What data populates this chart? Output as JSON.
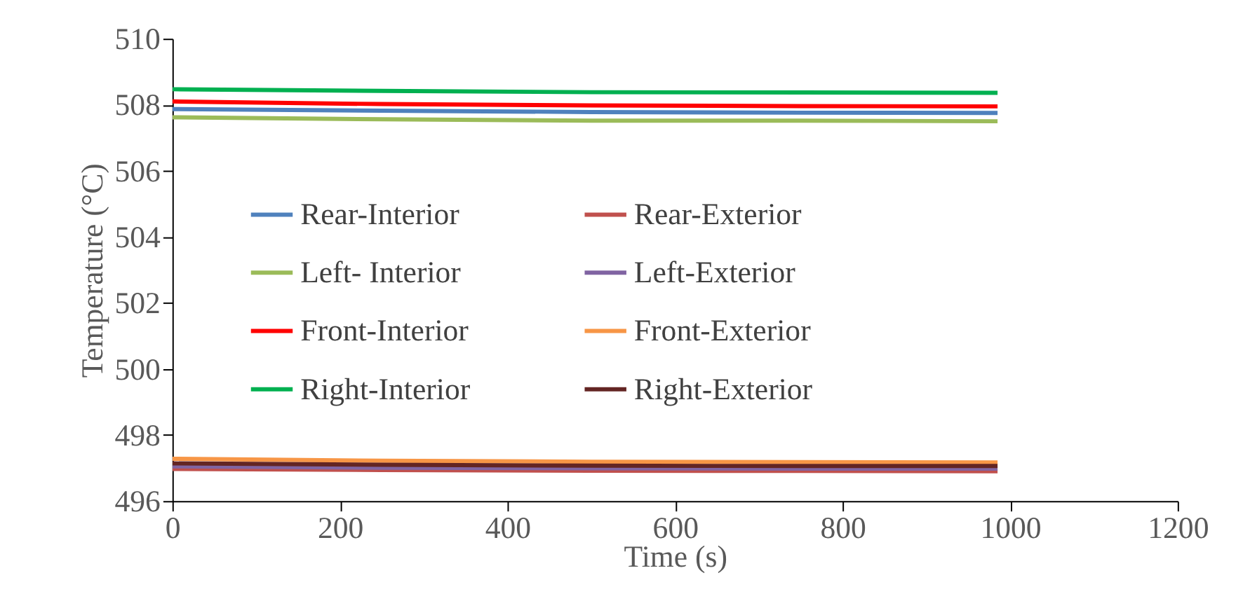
{
  "chart_data": {
    "type": "line",
    "xlabel": "Time (s)",
    "ylabel": "Temperature (°C)",
    "x": [
      0,
      250,
      500,
      750,
      985
    ],
    "series": [
      {
        "name": "Rear-Interior",
        "color": "#4f81bd",
        "values": [
          507.87,
          507.82,
          507.78,
          507.76,
          507.75
        ]
      },
      {
        "name": "Rear-Exterior",
        "color": "#c0504d",
        "values": [
          496.97,
          496.94,
          496.92,
          496.91,
          496.9
        ]
      },
      {
        "name": "Left- Interior",
        "color": "#9bbb59",
        "values": [
          507.62,
          507.56,
          507.52,
          507.52,
          507.5
        ]
      },
      {
        "name": "Left-Exterior",
        "color": "#8064a2",
        "values": [
          497.05,
          497.01,
          496.99,
          496.98,
          496.98
        ]
      },
      {
        "name": "Front-Interior",
        "color": "#ff0000",
        "values": [
          508.1,
          508.02,
          507.98,
          507.96,
          507.95
        ]
      },
      {
        "name": "Front-Exterior",
        "color": "#f79646",
        "values": [
          497.28,
          497.22,
          497.19,
          497.18,
          497.17
        ]
      },
      {
        "name": "Right-Interior",
        "color": "#00b050",
        "values": [
          508.47,
          508.42,
          508.38,
          508.37,
          508.36
        ]
      },
      {
        "name": "Right-Exterior",
        "color": "#632523",
        "values": [
          497.14,
          497.1,
          497.07,
          497.06,
          497.06
        ]
      }
    ],
    "xlim": [
      0,
      1200
    ],
    "xticks": [
      0,
      200,
      400,
      600,
      800,
      1000,
      1200
    ],
    "ylim": [
      496,
      510
    ],
    "yticks": [
      496,
      498,
      500,
      502,
      504,
      506,
      508,
      510
    ],
    "grid": false,
    "legend": "left",
    "marker": "none",
    "line_style": "solid"
  }
}
